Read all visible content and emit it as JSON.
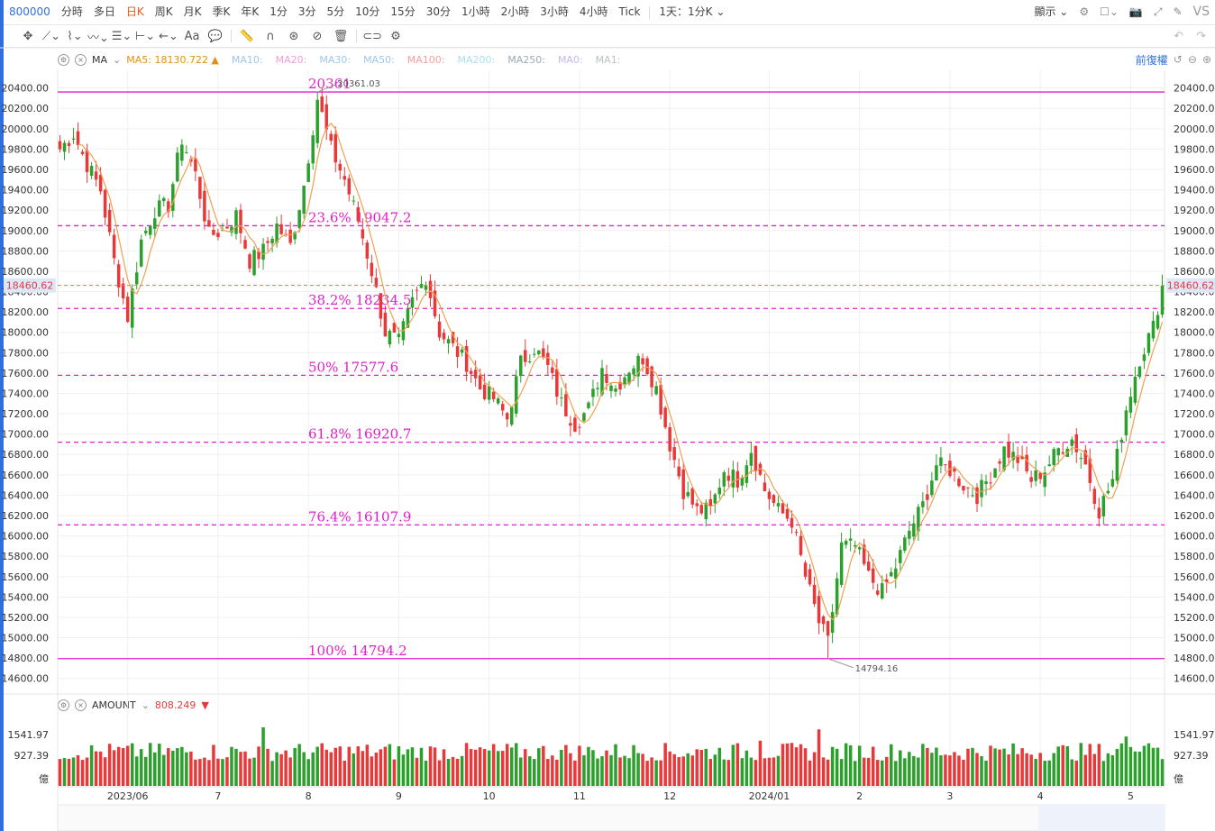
{
  "topbar": {
    "code": "800000",
    "periods": [
      "分時",
      "多日",
      "日K",
      "周K",
      "月K",
      "季K",
      "年K",
      "1分",
      "3分",
      "5分",
      "10分",
      "15分",
      "30分",
      "1小時",
      "2小時",
      "3小時",
      "4小時",
      "Tick"
    ],
    "active_period": "日K",
    "period_select": "1天：1分K",
    "display_label": "顯示",
    "vs_label": "VS"
  },
  "ma_legend": {
    "label": "MA",
    "items": [
      {
        "text": "MA5: 18130.722",
        "color": "#e8900c"
      },
      {
        "text": "MA10:",
        "color": "#9ec7e8"
      },
      {
        "text": "MA20:",
        "color": "#f0a0d8"
      },
      {
        "text": "MA30:",
        "color": "#9ec7e8"
      },
      {
        "text": "MA50:",
        "color": "#9ec7e8"
      },
      {
        "text": "MA100:",
        "color": "#f3a0a0"
      },
      {
        "text": "MA200:",
        "color": "#a8e0f0"
      },
      {
        "text": "MA250:",
        "color": "#9aaab8"
      },
      {
        "text": "MA0:",
        "color": "#c8b8e8"
      },
      {
        "text": "MA1:",
        "color": "#b8c0c8"
      }
    ],
    "ma5_up_marker": "▲",
    "adjust_label": "前復權"
  },
  "volume_legend": {
    "label": "AMOUNT",
    "value": "808.249",
    "value_marker": "▼"
  },
  "colors": {
    "up": "#2ca02c",
    "down": "#e8393a",
    "fib": "#e020c8",
    "ma5": "#f0a050",
    "price_line": "#e67e22",
    "grid": "#f0f0f0"
  },
  "chart_data": [
    {
      "type": "candlestick",
      "ylim": [
        14500,
        20450
      ],
      "yticks": [
        "20400.00",
        "20200.00",
        "20000.00",
        "19800.00",
        "19600.00",
        "19400.00",
        "19200.00",
        "19000.00",
        "18800.00",
        "18600.00",
        "18400.00",
        "18200.00",
        "18000.00",
        "17800.00",
        "17600.00",
        "17400.00",
        "17200.00",
        "17000.00",
        "16800.00",
        "16600.00",
        "16400.00",
        "16200.00",
        "16000.00",
        "15800.00",
        "15600.00",
        "15400.00",
        "15200.00",
        "15000.00",
        "14800.00",
        "14600.00"
      ],
      "xticks": [
        {
          "label": "2023/06",
          "index": 15
        },
        {
          "label": "7",
          "index": 35
        },
        {
          "label": "8",
          "index": 55
        },
        {
          "label": "9",
          "index": 75
        },
        {
          "label": "10",
          "index": 95
        },
        {
          "label": "11",
          "index": 115
        },
        {
          "label": "12",
          "index": 135
        },
        {
          "label": "2024/01",
          "index": 157
        },
        {
          "label": "2",
          "index": 177
        },
        {
          "label": "3",
          "index": 197
        },
        {
          "label": "4",
          "index": 217
        },
        {
          "label": "5",
          "index": 237
        }
      ],
      "current_price": "18460.62",
      "high_label": "20361.03",
      "low_label": "14794.16",
      "fib_levels": [
        {
          "label": "20361",
          "value": 20361,
          "style": "solid"
        },
        {
          "label": "23.6% 19047.2",
          "value": 19047.2,
          "style": "dashed"
        },
        {
          "label": "38.2% 18234.5",
          "value": 18234.5,
          "style": "dashed"
        },
        {
          "label": "50% 17577.6",
          "value": 17577.6,
          "style": "dashed"
        },
        {
          "label": "61.8% 16920.7",
          "value": 16920.7,
          "style": "dashed"
        },
        {
          "label": "76.4% 16107.9",
          "value": 16107.9,
          "style": "dashed"
        },
        {
          "label": "100% 14794.2",
          "value": 14794.2,
          "style": "solid"
        }
      ],
      "anchor_closes": [
        [
          0,
          19800
        ],
        [
          3,
          19950
        ],
        [
          6,
          19650
        ],
        [
          9,
          19400
        ],
        [
          12,
          18700
        ],
        [
          15,
          18150
        ],
        [
          18,
          18900
        ],
        [
          21,
          19200
        ],
        [
          24,
          19250
        ],
        [
          27,
          19900
        ],
        [
          30,
          19550
        ],
        [
          33,
          18950
        ],
        [
          36,
          19000
        ],
        [
          39,
          19150
        ],
        [
          42,
          18700
        ],
        [
          45,
          18800
        ],
        [
          48,
          19050
        ],
        [
          51,
          18850
        ],
        [
          54,
          19450
        ],
        [
          57,
          20300
        ],
        [
          60,
          19800
        ],
        [
          63,
          19500
        ],
        [
          66,
          19100
        ],
        [
          69,
          18600
        ],
        [
          72,
          18000
        ],
        [
          75,
          17900
        ],
        [
          78,
          18300
        ],
        [
          81,
          18550
        ],
        [
          84,
          18000
        ],
        [
          87,
          17850
        ],
        [
          90,
          17700
        ],
        [
          93,
          17450
        ],
        [
          96,
          17350
        ],
        [
          99,
          17150
        ],
        [
          102,
          17700
        ],
        [
          105,
          17850
        ],
        [
          108,
          17650
        ],
        [
          111,
          17300
        ],
        [
          114,
          17100
        ],
        [
          117,
          17250
        ],
        [
          120,
          17650
        ],
        [
          123,
          17450
        ],
        [
          126,
          17650
        ],
        [
          129,
          17750
        ],
        [
          132,
          17450
        ],
        [
          135,
          16900
        ],
        [
          138,
          16450
        ],
        [
          141,
          16250
        ],
        [
          144,
          16250
        ],
        [
          147,
          16650
        ],
        [
          150,
          16550
        ],
        [
          153,
          16850
        ],
        [
          156,
          16450
        ],
        [
          159,
          16250
        ],
        [
          162,
          16150
        ],
        [
          165,
          15600
        ],
        [
          168,
          15150
        ],
        [
          170,
          14950
        ],
        [
          173,
          15900
        ],
        [
          176,
          15900
        ],
        [
          179,
          15600
        ],
        [
          182,
          15450
        ],
        [
          185,
          15700
        ],
        [
          188,
          16050
        ],
        [
          191,
          16300
        ],
        [
          194,
          16700
        ],
        [
          197,
          16650
        ],
        [
          200,
          16500
        ],
        [
          203,
          16400
        ],
        [
          206,
          16600
        ],
        [
          209,
          16850
        ],
        [
          212,
          16750
        ],
        [
          215,
          16550
        ],
        [
          218,
          16650
        ],
        [
          221,
          16850
        ],
        [
          224,
          16950
        ],
        [
          227,
          16700
        ],
        [
          230,
          16250
        ],
        [
          233,
          16550
        ],
        [
          236,
          17250
        ],
        [
          239,
          17750
        ],
        [
          242,
          18050
        ],
        [
          244,
          18460
        ]
      ],
      "ma5_last": 18130.722
    },
    {
      "type": "bar",
      "title": "AMOUNT",
      "yticks": [
        "1541.97",
        "927.39",
        "億"
      ],
      "ylim": [
        0,
        1950
      ],
      "last_value": 808.249
    }
  ]
}
